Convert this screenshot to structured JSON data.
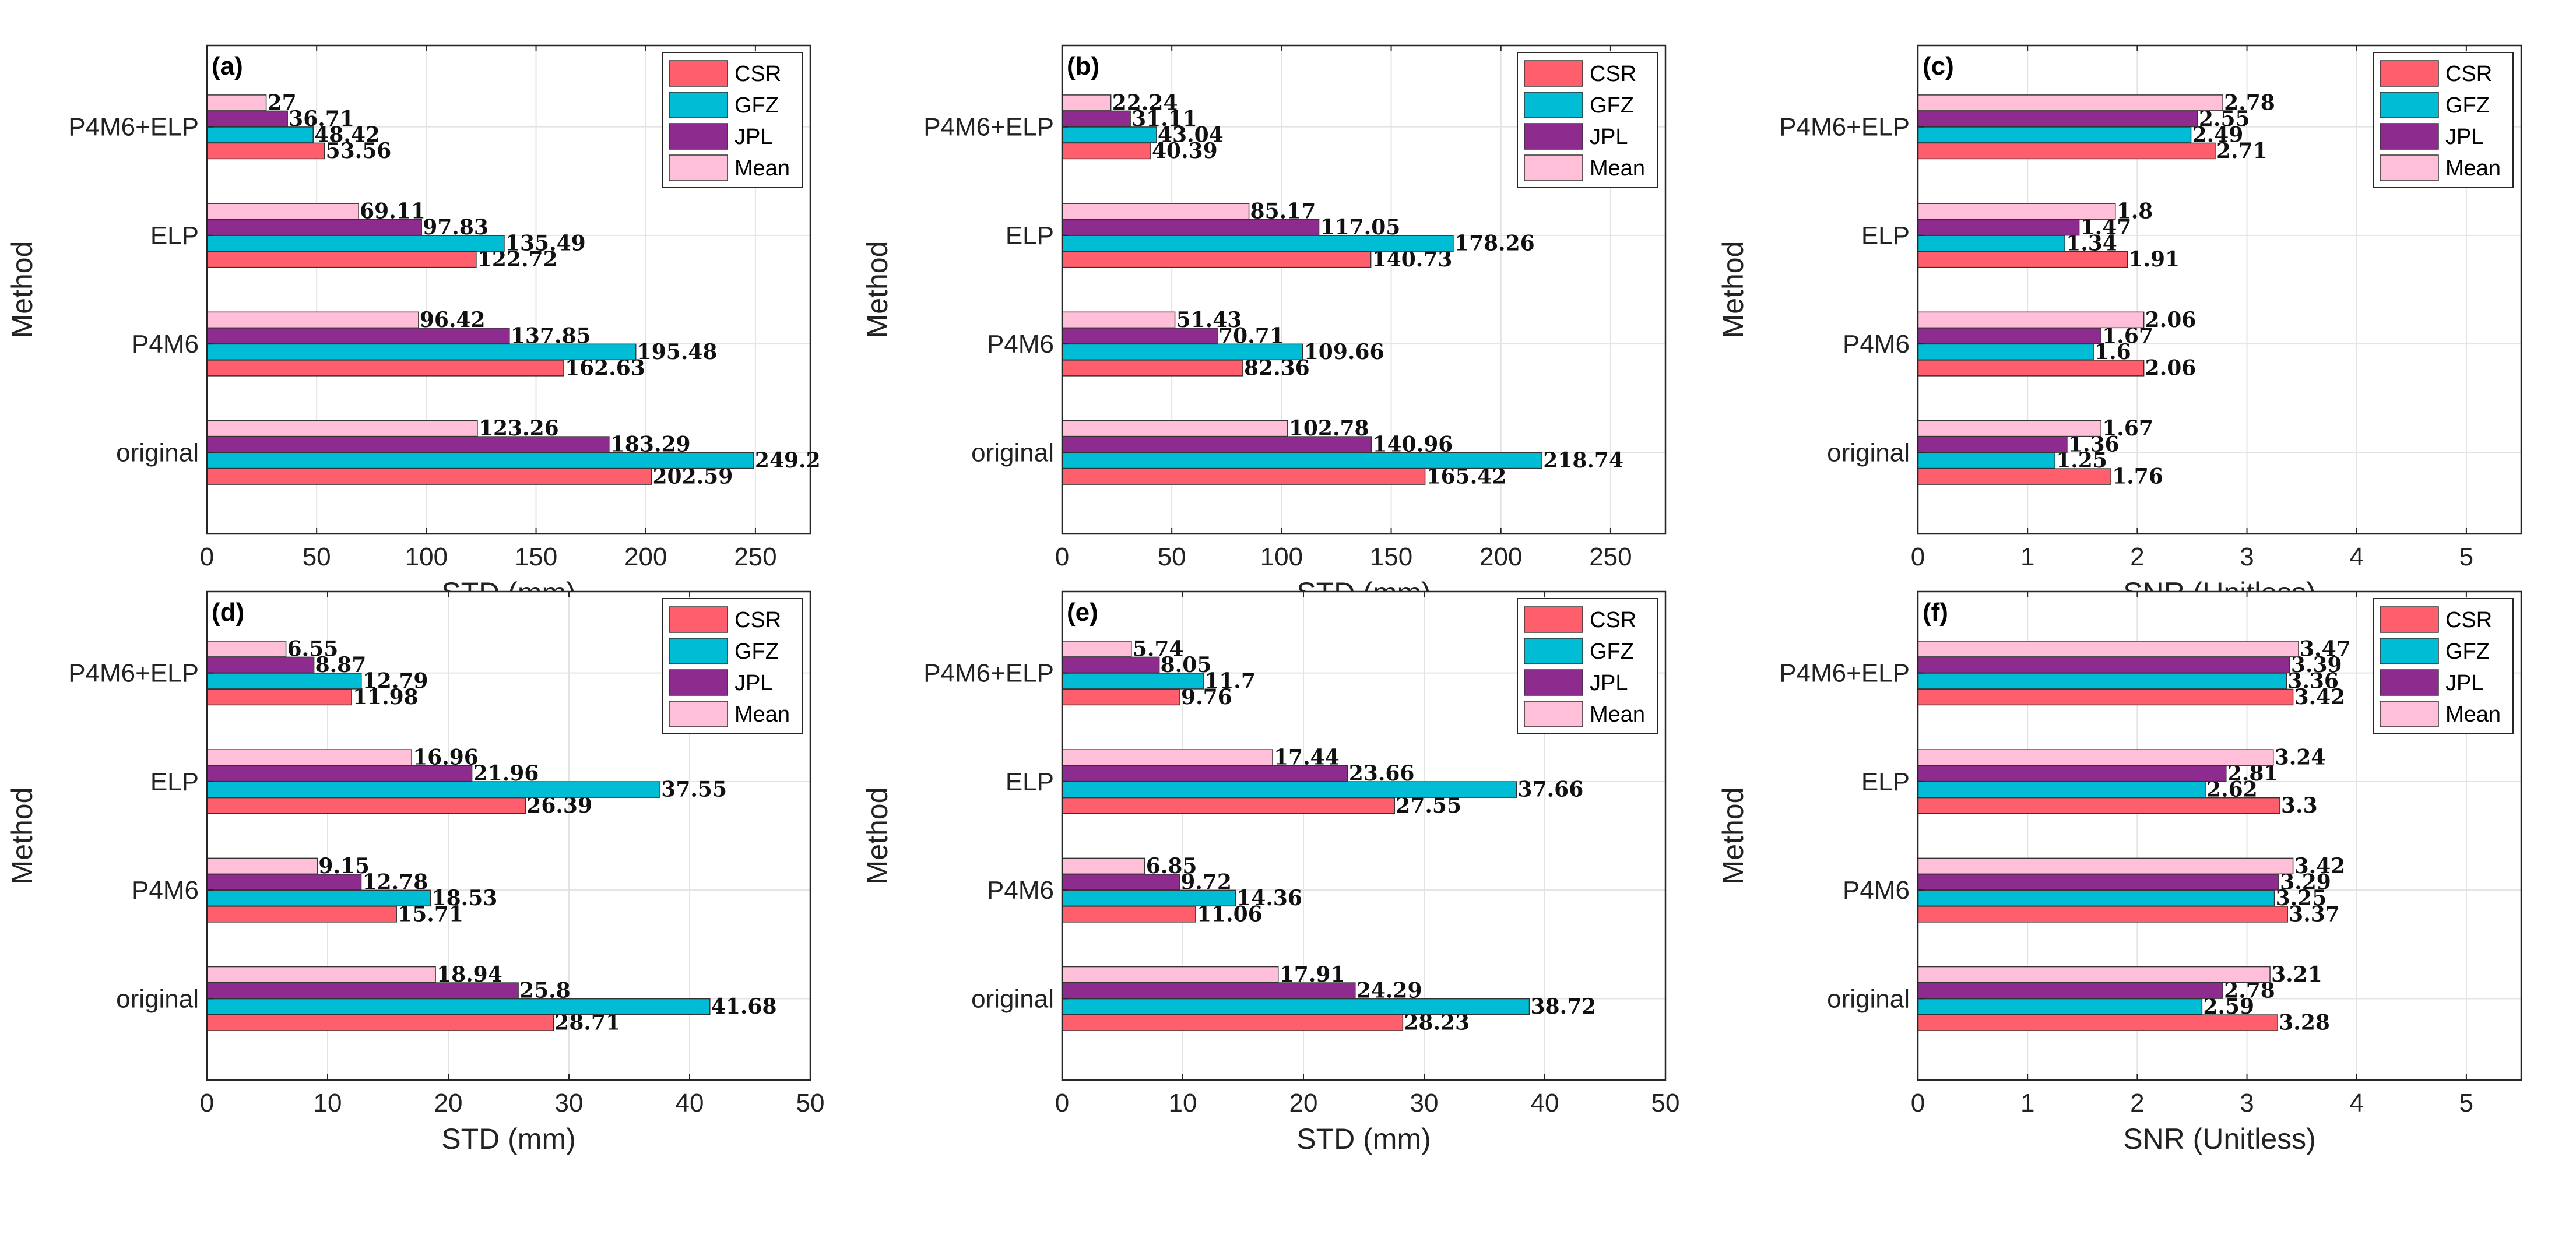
{
  "colors": {
    "CSR": "#ff5f6d",
    "GFZ": "#00bcd4",
    "JPL": "#8e2b8e",
    "Mean": "#ffbfd9"
  },
  "chart_data": [
    {
      "type": "bar",
      "orientation": "horizontal",
      "panel_label": "(a)",
      "title": "",
      "xlabel": "STD (mm)",
      "ylabel": "Method",
      "xlim": [
        0,
        275
      ],
      "xticks": [
        0,
        50,
        100,
        150,
        200,
        250
      ],
      "grid": true,
      "legend": [
        "CSR",
        "GFZ",
        "JPL",
        "Mean"
      ],
      "legend_position": "top-right",
      "categories": [
        "original",
        "P4M6",
        "ELP",
        "P4M6+ELP"
      ],
      "series": [
        {
          "name": "CSR",
          "values": [
            202.59,
            162.63,
            122.72,
            53.56
          ],
          "labels": [
            "202.59",
            "162.63",
            "122.72",
            "53.56"
          ]
        },
        {
          "name": "GFZ",
          "values": [
            249.2,
            195.48,
            135.49,
            48.42
          ],
          "labels": [
            "249.2",
            "195.48",
            "135.49",
            "48.42"
          ]
        },
        {
          "name": "JPL",
          "values": [
            183.29,
            137.85,
            97.83,
            36.71
          ],
          "labels": [
            "183.29",
            "137.85",
            "97.83",
            "36.71"
          ]
        },
        {
          "name": "Mean",
          "values": [
            123.26,
            96.42,
            69.11,
            27
          ],
          "labels": [
            "123.26",
            "96.42",
            "69.11",
            "27"
          ]
        }
      ]
    },
    {
      "type": "bar",
      "orientation": "horizontal",
      "panel_label": "(b)",
      "title": "",
      "xlabel": "STD (mm)",
      "ylabel": "Method",
      "xlim": [
        0,
        275
      ],
      "xticks": [
        0,
        50,
        100,
        150,
        200,
        250
      ],
      "grid": true,
      "legend": [
        "CSR",
        "GFZ",
        "JPL",
        "Mean"
      ],
      "legend_position": "top-right",
      "categories": [
        "original",
        "P4M6",
        "ELP",
        "P4M6+ELP"
      ],
      "series": [
        {
          "name": "CSR",
          "values": [
            165.42,
            82.36,
            140.73,
            40.39
          ],
          "labels": [
            "165.42",
            "82.36",
            "140.73",
            "40.39"
          ]
        },
        {
          "name": "GFZ",
          "values": [
            218.74,
            109.66,
            178.26,
            43.04
          ],
          "labels": [
            "218.74",
            "109.66",
            "178.26",
            "43.04"
          ]
        },
        {
          "name": "JPL",
          "values": [
            140.96,
            70.71,
            117.05,
            31.11
          ],
          "labels": [
            "140.96",
            "70.71",
            "117.05",
            "31.11"
          ]
        },
        {
          "name": "Mean",
          "values": [
            102.78,
            51.43,
            85.17,
            22.24
          ],
          "labels": [
            "102.78",
            "51.43",
            "85.17",
            "22.24"
          ]
        }
      ]
    },
    {
      "type": "bar",
      "orientation": "horizontal",
      "panel_label": "(c)",
      "title": "",
      "xlabel": "SNR (Unitless)",
      "ylabel": "Method",
      "xlim": [
        0,
        5.5
      ],
      "xticks": [
        0,
        1,
        2,
        3,
        4,
        5
      ],
      "grid": true,
      "legend": [
        "CSR",
        "GFZ",
        "JPL",
        "Mean"
      ],
      "legend_position": "top-right",
      "categories": [
        "original",
        "P4M6",
        "ELP",
        "P4M6+ELP"
      ],
      "series": [
        {
          "name": "CSR",
          "values": [
            1.76,
            2.06,
            1.91,
            2.71
          ],
          "labels": [
            "1.76",
            "2.06",
            "1.91",
            "2.71"
          ]
        },
        {
          "name": "GFZ",
          "values": [
            1.25,
            1.6,
            1.34,
            2.49
          ],
          "labels": [
            "1.25",
            "1.6",
            "1.34",
            "2.49"
          ]
        },
        {
          "name": "JPL",
          "values": [
            1.36,
            1.67,
            1.47,
            2.55
          ],
          "labels": [
            "1.36",
            "1.67",
            "1.47",
            "2.55"
          ]
        },
        {
          "name": "Mean",
          "values": [
            1.67,
            2.06,
            1.8,
            2.78
          ],
          "labels": [
            "1.67",
            "2.06",
            "1.8",
            "2.78"
          ]
        }
      ]
    },
    {
      "type": "bar",
      "orientation": "horizontal",
      "panel_label": "(d)",
      "title": "",
      "xlabel": "STD (mm)",
      "ylabel": "Method",
      "xlim": [
        0,
        50
      ],
      "xticks": [
        0,
        10,
        20,
        30,
        40,
        50
      ],
      "grid": true,
      "legend": [
        "CSR",
        "GFZ",
        "JPL",
        "Mean"
      ],
      "legend_position": "top-right",
      "categories": [
        "original",
        "P4M6",
        "ELP",
        "P4M6+ELP"
      ],
      "series": [
        {
          "name": "CSR",
          "values": [
            28.71,
            15.71,
            26.39,
            11.98
          ],
          "labels": [
            "28.71",
            "15.71",
            "26.39",
            "11.98"
          ]
        },
        {
          "name": "GFZ",
          "values": [
            41.68,
            18.53,
            37.55,
            12.79
          ],
          "labels": [
            "41.68",
            "18.53",
            "37.55",
            "12.79"
          ]
        },
        {
          "name": "JPL",
          "values": [
            25.8,
            12.78,
            21.96,
            8.87
          ],
          "labels": [
            "25.8",
            "12.78",
            "21.96",
            "8.87"
          ]
        },
        {
          "name": "Mean",
          "values": [
            18.94,
            9.15,
            16.96,
            6.55
          ],
          "labels": [
            "18.94",
            "9.15",
            "16.96",
            "6.55"
          ]
        }
      ]
    },
    {
      "type": "bar",
      "orientation": "horizontal",
      "panel_label": "(e)",
      "title": "",
      "xlabel": "STD (mm)",
      "ylabel": "Method",
      "xlim": [
        0,
        50
      ],
      "xticks": [
        0,
        10,
        20,
        30,
        40,
        50
      ],
      "grid": true,
      "legend": [
        "CSR",
        "GFZ",
        "JPL",
        "Mean"
      ],
      "legend_position": "top-right",
      "categories": [
        "original",
        "P4M6",
        "ELP",
        "P4M6+ELP"
      ],
      "series": [
        {
          "name": "CSR",
          "values": [
            28.23,
            11.06,
            27.55,
            9.76
          ],
          "labels": [
            "28.23",
            "11.06",
            "27.55",
            "9.76"
          ]
        },
        {
          "name": "GFZ",
          "values": [
            38.72,
            14.36,
            37.66,
            11.7
          ],
          "labels": [
            "38.72",
            "14.36",
            "37.66",
            "11.7"
          ]
        },
        {
          "name": "JPL",
          "values": [
            24.29,
            9.72,
            23.66,
            8.05
          ],
          "labels": [
            "24.29",
            "9.72",
            "23.66",
            "8.05"
          ]
        },
        {
          "name": "Mean",
          "values": [
            17.91,
            6.85,
            17.44,
            5.74
          ],
          "labels": [
            "17.91",
            "6.85",
            "17.44",
            "5.74"
          ]
        }
      ]
    },
    {
      "type": "bar",
      "orientation": "horizontal",
      "panel_label": "(f)",
      "title": "",
      "xlabel": "SNR (Unitless)",
      "ylabel": "Method",
      "xlim": [
        0,
        5.5
      ],
      "xticks": [
        0,
        1,
        2,
        3,
        4,
        5
      ],
      "grid": true,
      "legend": [
        "CSR",
        "GFZ",
        "JPL",
        "Mean"
      ],
      "legend_position": "top-right",
      "categories": [
        "original",
        "P4M6",
        "ELP",
        "P4M6+ELP"
      ],
      "series": [
        {
          "name": "CSR",
          "values": [
            3.28,
            3.37,
            3.3,
            3.42
          ],
          "labels": [
            "3.28",
            "3.37",
            "3.3",
            "3.42"
          ]
        },
        {
          "name": "GFZ",
          "values": [
            2.59,
            3.25,
            2.62,
            3.36
          ],
          "labels": [
            "2.59",
            "3.25",
            "2.62",
            "3.36"
          ]
        },
        {
          "name": "JPL",
          "values": [
            2.78,
            3.29,
            2.81,
            3.39
          ],
          "labels": [
            "2.78",
            "3.29",
            "2.81",
            "3.39"
          ]
        },
        {
          "name": "Mean",
          "values": [
            3.21,
            3.42,
            3.24,
            3.47
          ],
          "labels": [
            "3.21",
            "3.42",
            "3.24",
            "3.47"
          ]
        }
      ]
    }
  ]
}
